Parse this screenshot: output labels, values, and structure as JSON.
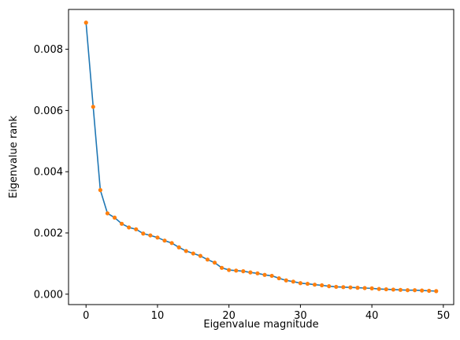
{
  "chart_data": {
    "type": "line",
    "title": "",
    "xlabel": "Eigenvalue magnitude",
    "ylabel": "Eigenvalue rank",
    "xlim": [
      -2.45,
      51.45
    ],
    "ylim": [
      -0.00034,
      0.0093
    ],
    "xticks": [
      0,
      10,
      20,
      30,
      40,
      50
    ],
    "yticks": [
      0.0,
      0.002,
      0.004,
      0.006,
      0.008
    ],
    "xtick_labels": [
      "0",
      "10",
      "20",
      "30",
      "40",
      "50"
    ],
    "ytick_labels": [
      "0.000",
      "0.002",
      "0.004",
      "0.006",
      "0.008"
    ],
    "grid": false,
    "legend": "none",
    "series": [
      {
        "line_color": "#1f77b4",
        "marker_color": "#ff7f0e",
        "x": [
          0,
          1,
          2,
          3,
          4,
          5,
          6,
          7,
          8,
          9,
          10,
          11,
          12,
          13,
          14,
          15,
          16,
          17,
          18,
          19,
          20,
          21,
          22,
          23,
          24,
          25,
          26,
          27,
          28,
          29,
          30,
          31,
          32,
          33,
          34,
          35,
          36,
          37,
          38,
          39,
          40,
          41,
          42,
          43,
          44,
          45,
          46,
          47,
          48,
          49
        ],
        "y": [
          0.00887,
          0.00612,
          0.0034,
          0.00264,
          0.0025,
          0.0023,
          0.00218,
          0.00212,
          0.00198,
          0.00192,
          0.00185,
          0.00175,
          0.00167,
          0.00153,
          0.00141,
          0.00133,
          0.00125,
          0.00113,
          0.00103,
          0.00086,
          0.00079,
          0.00077,
          0.00075,
          0.00071,
          0.00068,
          0.00063,
          0.0006,
          0.00052,
          0.00045,
          0.00041,
          0.00036,
          0.00034,
          0.00031,
          0.00029,
          0.00026,
          0.00024,
          0.00023,
          0.00022,
          0.00021,
          0.0002,
          0.00019,
          0.00017,
          0.00016,
          0.00015,
          0.00014,
          0.00013,
          0.00013,
          0.00012,
          0.00011,
          0.0001
        ]
      }
    ]
  }
}
